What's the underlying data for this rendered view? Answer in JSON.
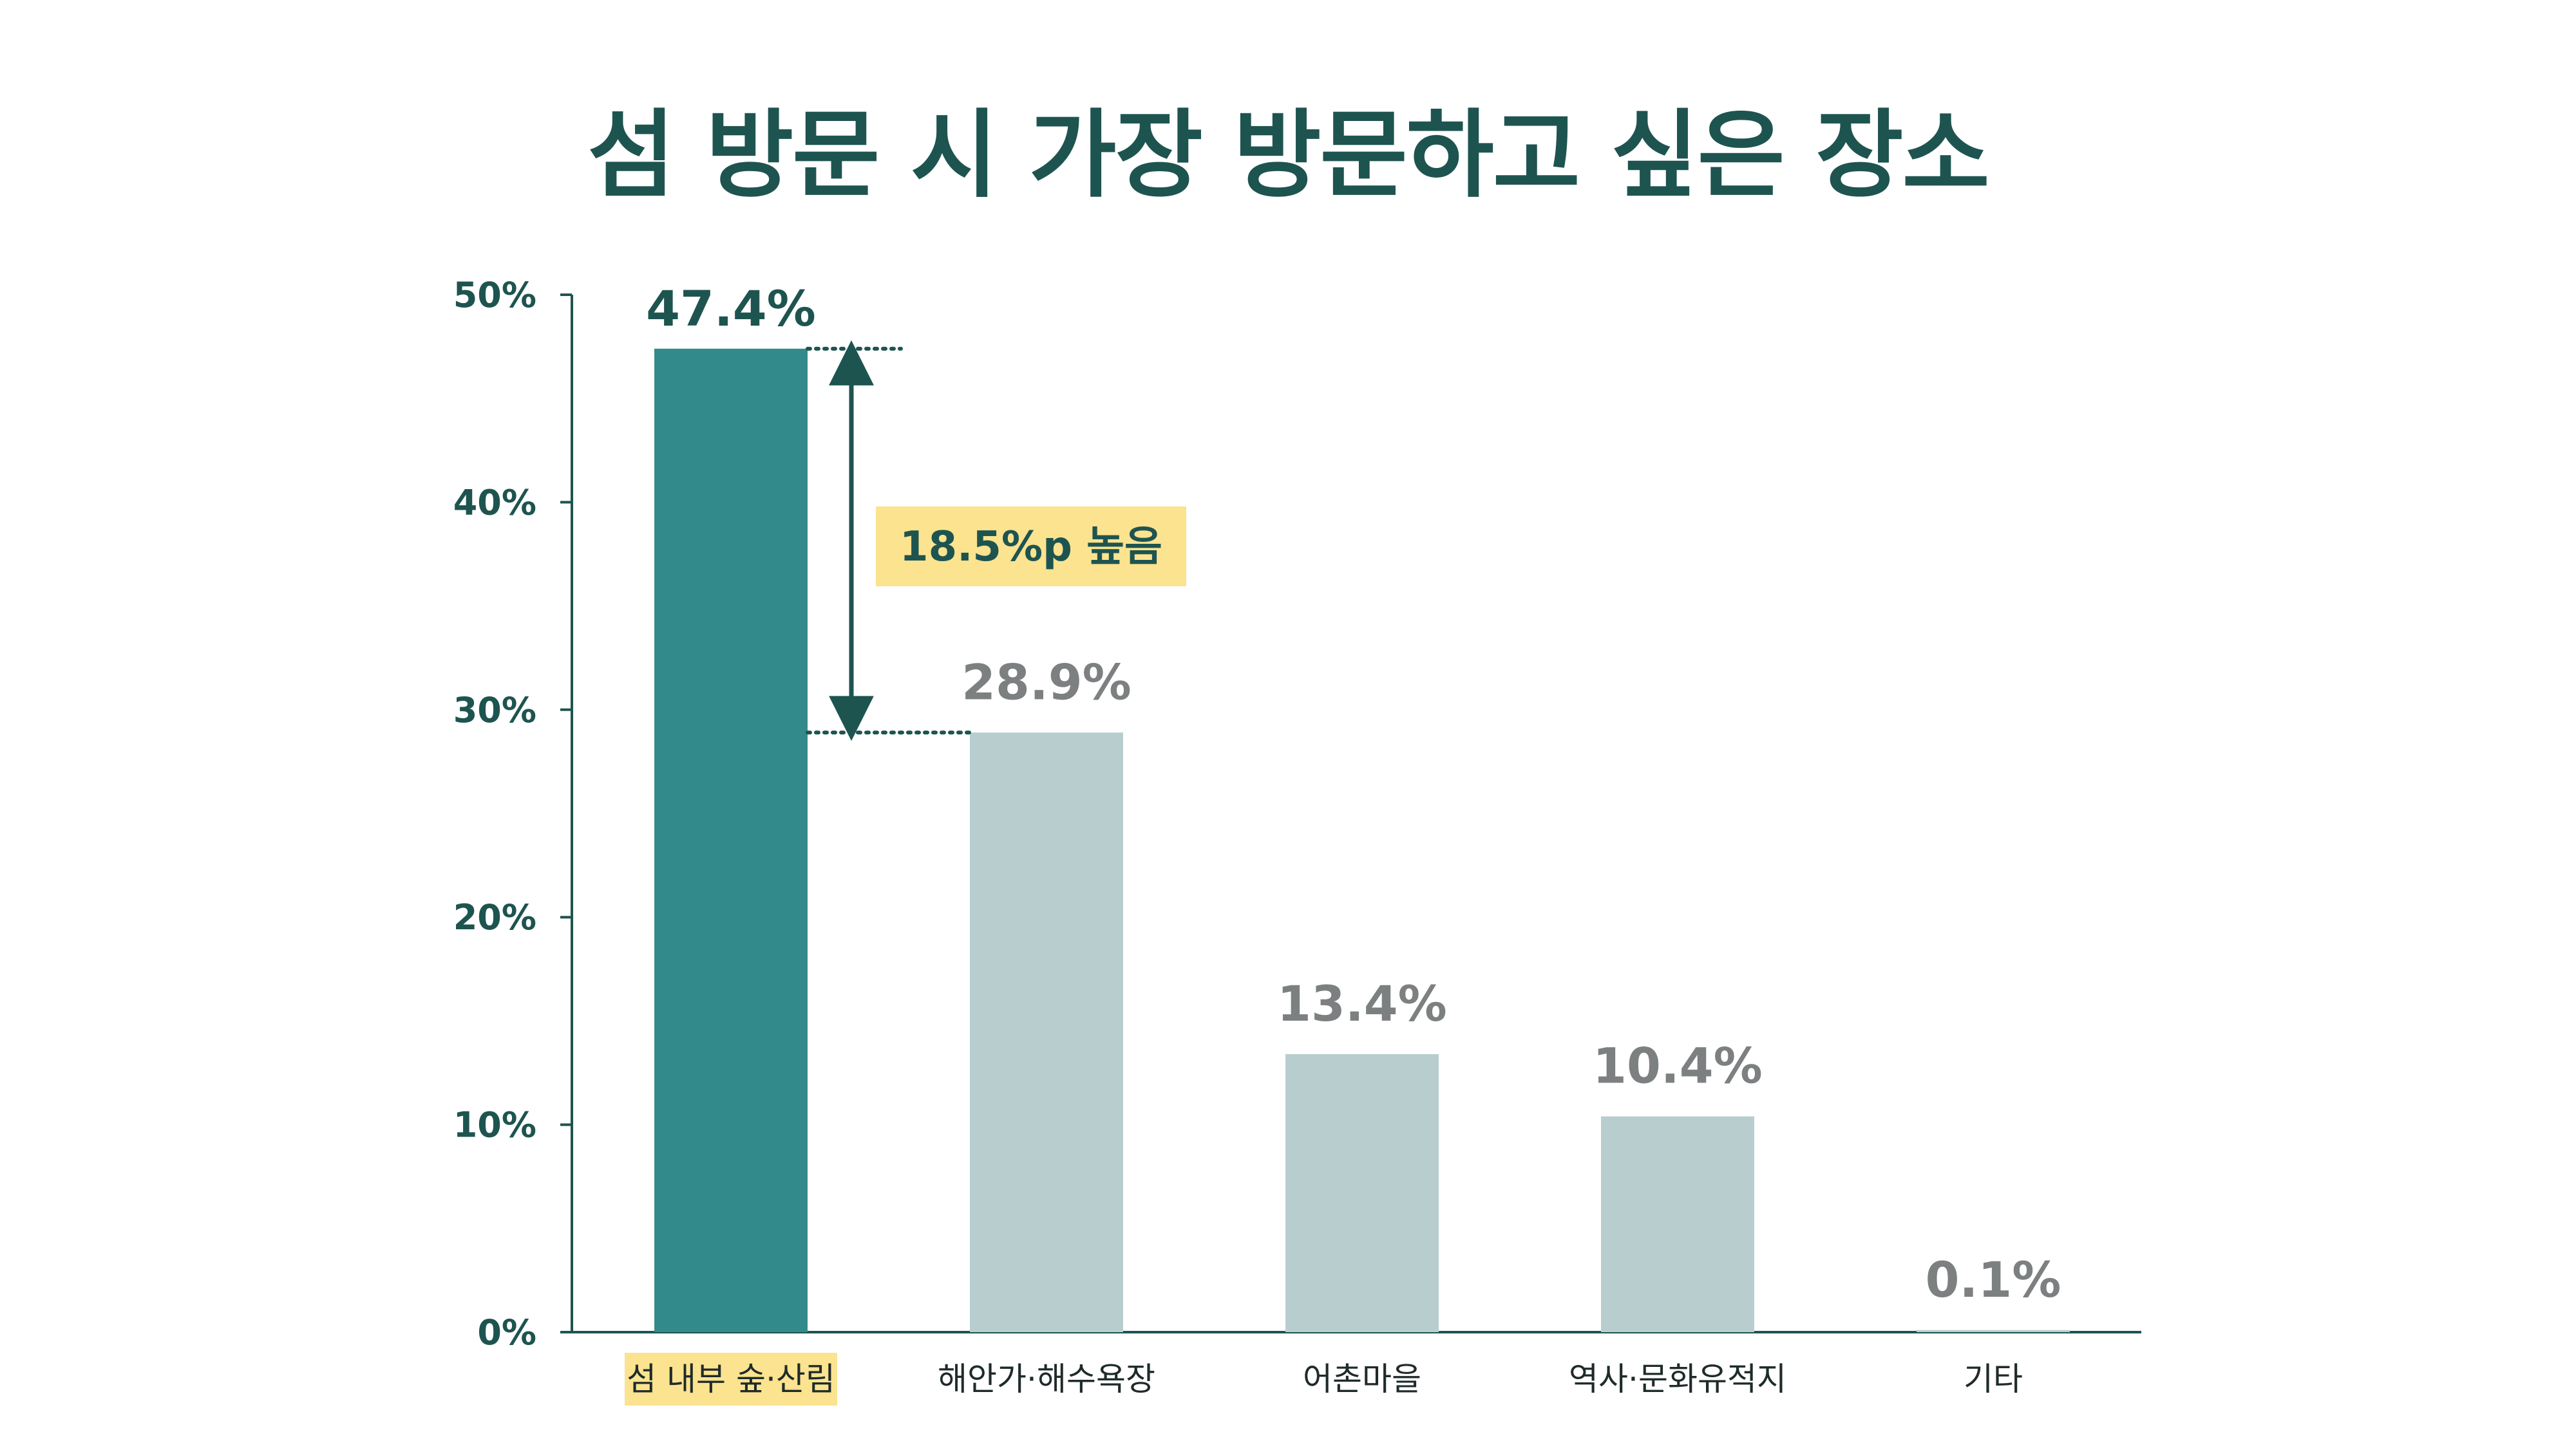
{
  "chart_data": {
    "type": "bar",
    "title": "섬 방문 시 가장 방문하고 싶은 장소",
    "categories": [
      "섬 내부 숲·산림",
      "해안가·해수욕장",
      "어촌마을",
      "역사·문화유적지",
      "기타"
    ],
    "values": [
      47.4,
      28.9,
      13.4,
      10.4,
      0.1
    ],
    "value_labels": [
      "47.4%",
      "28.9%",
      "13.4%",
      "10.4%",
      "0.1%"
    ],
    "ylim": [
      0,
      50
    ],
    "yticks": [
      0,
      10,
      20,
      30,
      40,
      50
    ],
    "ytick_labels": [
      "0%",
      "10%",
      "20%",
      "30%",
      "40%",
      "50%"
    ],
    "xlabel": "",
    "ylabel": "",
    "grid": false,
    "highlight_index": 0,
    "annotation": {
      "text": "18.5%p 높음",
      "from_value": 28.9,
      "to_value": 47.4
    },
    "colors": {
      "highlight_bar": "#338a8a",
      "other_bar": "#b8cdce",
      "highlight_value": "#1e5450",
      "other_value": "#7d8081",
      "axis": "#1e5450",
      "label_highlight_bg": "#fbe38f",
      "annotation_bg": "#fbe38f",
      "title": "#1e5450"
    }
  }
}
